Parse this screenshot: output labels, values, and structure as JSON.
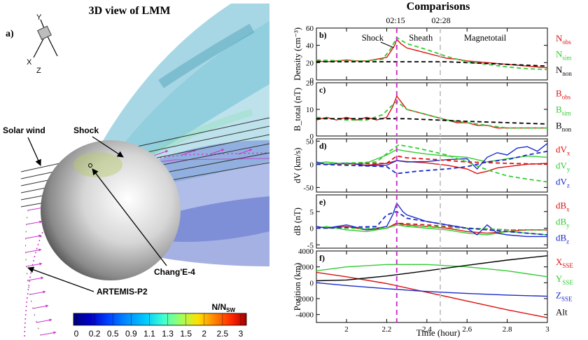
{
  "left_panel": {
    "title": "3D view of LMM",
    "panel_label": "a)",
    "axes": {
      "y": "Y",
      "x": "X",
      "z": "Z"
    },
    "labels": {
      "shock": "Shock",
      "solar_wind": "Solar wind",
      "changee4": "Chang'E-4",
      "artemis": "ARTEMIS-P2"
    },
    "colorbar": {
      "title": "N/N",
      "title_sub": "SW",
      "ticks": [
        "0",
        "0.2",
        "0.5",
        "0.9",
        "1.1",
        "1.3",
        "1.5",
        "2",
        "2.5",
        "3"
      ],
      "colors": [
        "#00007f",
        "#0000c8",
        "#0040ff",
        "#0088ff",
        "#00ccff",
        "#40ffd0",
        "#9fff60",
        "#ffe000",
        "#ff8000",
        "#ff2000",
        "#a00000"
      ]
    }
  },
  "right_panel": {
    "title": "Comparisons",
    "markers": [
      "02:15",
      "02:28"
    ],
    "xlabel": "Time (hour)",
    "region_labels": [
      "Shock",
      "Sheath",
      "Magnetotail"
    ]
  },
  "chart_data": [
    {
      "type": "line",
      "label": "b)",
      "ylabel": "Density (cm⁻³)",
      "ylim": [
        0,
        60
      ],
      "yticks": [
        0,
        20,
        40,
        60
      ],
      "series": [
        {
          "name": "N_obs",
          "color": "#dd1111",
          "dash": false,
          "x": [
            1.85,
            1.9,
            1.95,
            2.0,
            2.05,
            2.1,
            2.15,
            2.2,
            2.22,
            2.24,
            2.25,
            2.27,
            2.3,
            2.35,
            2.4,
            2.45,
            2.5,
            2.55,
            2.6,
            2.65,
            2.7,
            2.75,
            2.8,
            2.85,
            2.9,
            2.95,
            3.0
          ],
          "y": [
            22,
            21,
            22,
            23,
            22,
            22,
            24,
            26,
            33,
            40,
            47,
            42,
            37,
            34,
            31,
            28,
            25,
            24,
            22,
            21,
            20,
            19,
            18,
            17,
            16,
            15,
            14
          ]
        },
        {
          "name": "N_sim",
          "color": "#33cc33",
          "dash": true,
          "x": [
            1.85,
            2.0,
            2.1,
            2.18,
            2.22,
            2.25,
            2.3,
            2.4,
            2.5,
            2.6,
            2.7,
            2.8,
            2.9,
            3.0
          ],
          "y": [
            23,
            22,
            22,
            24,
            36,
            49,
            42,
            35,
            27,
            21,
            18,
            15,
            13,
            12
          ]
        },
        {
          "name": "N_non",
          "color": "#000000",
          "dash": true,
          "x": [
            1.85,
            2.2,
            2.5,
            2.8,
            3.0
          ],
          "y": [
            21,
            21,
            21,
            18,
            16
          ]
        }
      ],
      "legend": [
        {
          "main": "N",
          "sub": "obs",
          "color": "#dd1111"
        },
        {
          "main": "N",
          "sub": "sim",
          "color": "#33cc33"
        },
        {
          "main": "N",
          "sub": "non",
          "color": "#000000"
        }
      ]
    },
    {
      "type": "line",
      "label": "c)",
      "ylabel": "B_total (nT)",
      "ylim": [
        0,
        20
      ],
      "yticks": [
        0,
        10,
        20
      ],
      "series": [
        {
          "name": "B_obs",
          "color": "#dd1111",
          "dash": false,
          "x": [
            1.85,
            1.9,
            1.95,
            2.0,
            2.05,
            2.1,
            2.15,
            2.2,
            2.23,
            2.25,
            2.28,
            2.3,
            2.35,
            2.4,
            2.45,
            2.5,
            2.55,
            2.6,
            2.65,
            2.7,
            2.75,
            2.8,
            2.85,
            2.9,
            2.95,
            3.0
          ],
          "y": [
            6,
            7,
            6,
            7,
            6,
            7,
            6,
            7,
            11,
            15,
            12,
            10,
            9,
            8,
            7,
            6,
            5,
            5,
            4,
            4,
            3,
            3,
            3,
            3,
            3,
            3
          ]
        },
        {
          "name": "B_sim",
          "color": "#33cc33",
          "dash": true,
          "x": [
            1.85,
            2.0,
            2.1,
            2.18,
            2.22,
            2.25,
            2.3,
            2.4,
            2.5,
            2.6,
            2.7,
            2.8,
            2.9,
            3.0
          ],
          "y": [
            7,
            6,
            6,
            8,
            11,
            13,
            10,
            8,
            6,
            5,
            4,
            3,
            3,
            3
          ]
        },
        {
          "name": "B_non",
          "color": "#000000",
          "dash": true,
          "x": [
            1.85,
            2.3,
            2.6,
            3.0
          ],
          "y": [
            6.5,
            6.5,
            5.5,
            4.5
          ]
        }
      ],
      "legend": [
        {
          "main": "B",
          "sub": "obs",
          "color": "#dd1111"
        },
        {
          "main": "B",
          "sub": "sim",
          "color": "#33cc33"
        },
        {
          "main": "B",
          "sub": "non",
          "color": "#000000"
        }
      ]
    },
    {
      "type": "line",
      "label": "d)",
      "ylabel": "dV (km/s)",
      "ylim": [
        -60,
        55
      ],
      "yticks": [
        -50,
        0,
        50
      ],
      "series": [
        {
          "name": "dV_x",
          "color": "#dd1111",
          "dash": false,
          "x": [
            1.85,
            1.9,
            2.0,
            2.1,
            2.2,
            2.25,
            2.3,
            2.4,
            2.5,
            2.6,
            2.65,
            2.7,
            2.75,
            2.8,
            2.9,
            3.0
          ],
          "y": [
            3,
            0,
            2,
            -2,
            2,
            8,
            6,
            3,
            -2,
            -10,
            -20,
            -15,
            -8,
            -5,
            0,
            2
          ]
        },
        {
          "name": "dV_y",
          "color": "#33cc33",
          "dash": false,
          "x": [
            1.85,
            1.9,
            2.0,
            2.1,
            2.2,
            2.25,
            2.3,
            2.4,
            2.5,
            2.6,
            2.7,
            2.8,
            2.9,
            3.0
          ],
          "y": [
            2,
            5,
            0,
            3,
            20,
            32,
            28,
            22,
            18,
            15,
            5,
            12,
            18,
            15
          ]
        },
        {
          "name": "dV_z",
          "color": "#1a2bcc",
          "dash": false,
          "x": [
            1.85,
            1.9,
            2.0,
            2.1,
            2.2,
            2.25,
            2.3,
            2.4,
            2.5,
            2.6,
            2.65,
            2.7,
            2.75,
            2.8,
            2.85,
            2.9,
            2.95,
            3.0
          ],
          "y": [
            5,
            0,
            3,
            -3,
            -2,
            8,
            5,
            6,
            10,
            12,
            -10,
            15,
            25,
            20,
            35,
            38,
            28,
            45
          ]
        },
        {
          "name": "dV_x_sim",
          "color": "#dd1111",
          "dash": true,
          "x": [
            1.85,
            2.2,
            2.25,
            2.3,
            2.45,
            2.6,
            2.8,
            3.0
          ],
          "y": [
            0,
            2,
            18,
            14,
            10,
            5,
            2,
            0
          ]
        },
        {
          "name": "dV_y_sim",
          "color": "#33cc33",
          "dash": true,
          "x": [
            1.85,
            2.15,
            2.22,
            2.26,
            2.35,
            2.5,
            2.6,
            2.7,
            2.8,
            2.9,
            3.0
          ],
          "y": [
            0,
            5,
            30,
            42,
            35,
            20,
            5,
            -12,
            -25,
            -32,
            -38
          ]
        },
        {
          "name": "dV_z_sim",
          "color": "#1a2bcc",
          "dash": true,
          "x": [
            1.85,
            2.2,
            2.25,
            2.35,
            2.5,
            2.6,
            2.7,
            2.8,
            2.9,
            3.0
          ],
          "y": [
            0,
            -5,
            -20,
            -15,
            -10,
            -5,
            5,
            10,
            20,
            28
          ]
        }
      ],
      "legend": [
        {
          "main": "dV",
          "sub": "x",
          "color": "#dd1111"
        },
        {
          "main": "dV",
          "sub": "y",
          "color": "#33cc33"
        },
        {
          "main": "dV",
          "sub": "z",
          "color": "#1a2bcc"
        }
      ]
    },
    {
      "type": "line",
      "label": "e)",
      "ylabel": "dB (nT)",
      "ylim": [
        -6,
        10
      ],
      "yticks": [
        -5,
        0,
        5
      ],
      "series": [
        {
          "name": "dB_x",
          "color": "#dd1111",
          "dash": false,
          "x": [
            1.85,
            1.9,
            2.0,
            2.1,
            2.2,
            2.25,
            2.3,
            2.4,
            2.5,
            2.6,
            2.7,
            2.8,
            2.9,
            3.0
          ],
          "y": [
            0.5,
            0,
            0.5,
            -0.5,
            0,
            1.5,
            1,
            0.5,
            0,
            -1,
            -1.5,
            -1,
            -0.5,
            -0.5
          ]
        },
        {
          "name": "dB_y",
          "color": "#33cc33",
          "dash": false,
          "x": [
            1.85,
            1.9,
            2.0,
            2.1,
            2.2,
            2.25,
            2.3,
            2.4,
            2.5,
            2.6,
            2.7,
            2.8,
            2.9,
            3.0
          ],
          "y": [
            0,
            0.5,
            -0.5,
            -1,
            0,
            1,
            0.5,
            0,
            -0.5,
            -1.5,
            -2,
            -1,
            -1.5,
            -2
          ]
        },
        {
          "name": "dB_z",
          "color": "#1a2bcc",
          "dash": false,
          "x": [
            1.85,
            1.9,
            2.0,
            2.1,
            2.2,
            2.23,
            2.25,
            2.28,
            2.3,
            2.35,
            2.4,
            2.5,
            2.6,
            2.65,
            2.7,
            2.75,
            2.8,
            2.9,
            3.0
          ],
          "y": [
            0.5,
            0,
            1,
            -0.5,
            0.5,
            4,
            7.5,
            5,
            4,
            3,
            2,
            1,
            0,
            -2,
            1,
            -1.5,
            -2,
            -2.5,
            -2.5
          ]
        },
        {
          "name": "dB_x_sim",
          "color": "#dd1111",
          "dash": true,
          "x": [
            1.85,
            2.2,
            2.25,
            2.4,
            2.6,
            2.8,
            3.0
          ],
          "y": [
            0,
            0,
            1.5,
            1,
            0,
            -0.5,
            -0.5
          ]
        },
        {
          "name": "dB_y_sim",
          "color": "#33cc33",
          "dash": true,
          "x": [
            1.85,
            2.2,
            2.25,
            2.4,
            2.6,
            2.8,
            3.0
          ],
          "y": [
            0,
            0,
            1,
            0.5,
            0,
            -0.5,
            -0.5
          ]
        },
        {
          "name": "dB_z_sim",
          "color": "#1a2bcc",
          "dash": true,
          "x": [
            1.85,
            2.15,
            2.2,
            2.25,
            2.3,
            2.45,
            2.6,
            2.8,
            3.0
          ],
          "y": [
            0,
            0.5,
            4,
            5,
            3,
            1.5,
            0,
            -1,
            -2
          ]
        }
      ],
      "legend": [
        {
          "main": "dB",
          "sub": "x",
          "color": "#dd1111"
        },
        {
          "main": "dB",
          "sub": "y",
          "color": "#33cc33"
        },
        {
          "main": "dB",
          "sub": "z",
          "color": "#1a2bcc"
        }
      ]
    },
    {
      "type": "line",
      "label": "f)",
      "ylabel": "Position (km)",
      "ylim": [
        -5000,
        4000
      ],
      "yticks": [
        -4000,
        -2000,
        0,
        2000,
        4000
      ],
      "series": [
        {
          "name": "X_SSE",
          "color": "#dd1111",
          "dash": false,
          "x": [
            1.85,
            2.0,
            2.2,
            2.4,
            2.6,
            2.8,
            3.0
          ],
          "y": [
            1300,
            750,
            -100,
            -1200,
            -2300,
            -3400,
            -4400
          ]
        },
        {
          "name": "Y_SSE",
          "color": "#33cc33",
          "dash": false,
          "x": [
            1.85,
            2.0,
            2.2,
            2.4,
            2.6,
            2.8,
            3.0
          ],
          "y": [
            1500,
            2000,
            2300,
            2300,
            2000,
            1500,
            750
          ]
        },
        {
          "name": "Z_SSE",
          "color": "#1a2bcc",
          "dash": false,
          "x": [
            1.85,
            2.0,
            2.2,
            2.4,
            2.6,
            2.8,
            3.0
          ],
          "y": [
            0,
            -350,
            -750,
            -1100,
            -1350,
            -1550,
            -1700
          ]
        },
        {
          "name": "Alt",
          "color": "#000000",
          "dash": false,
          "x": [
            1.85,
            2.0,
            2.2,
            2.4,
            2.6,
            2.8,
            3.0
          ],
          "y": [
            250,
            350,
            850,
            1500,
            2200,
            2850,
            3400
          ]
        }
      ],
      "legend": [
        {
          "main": "X",
          "sub": "SSE",
          "color": "#dd1111"
        },
        {
          "main": "Y",
          "sub": "SSE",
          "color": "#33cc33"
        },
        {
          "main": "Z",
          "sub": "SSE",
          "color": "#1a2bcc"
        },
        {
          "main": "Alt",
          "sub": "",
          "color": "#000000"
        }
      ]
    }
  ],
  "x_axis": {
    "range": [
      1.85,
      3.0
    ],
    "ticks": [
      "2",
      "2.2",
      "2.4",
      "2.6",
      "2.8",
      "3"
    ],
    "tick_values": [
      2.0,
      2.2,
      2.4,
      2.6,
      2.8,
      3.0
    ]
  },
  "marker_positions": {
    "shock_time": 2.25,
    "tail_time": 2.4667,
    "shock_color": "#cc33cc",
    "tail_color": "#c8c8c8"
  }
}
